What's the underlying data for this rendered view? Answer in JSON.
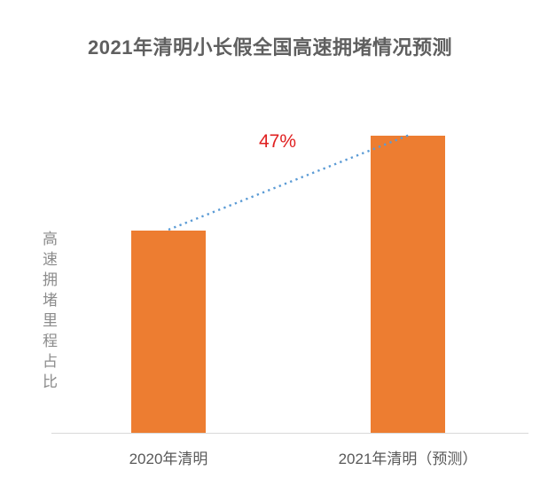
{
  "chart_data": {
    "type": "bar",
    "title": "2021年清明小长假全国高速拥堵情况预测",
    "ylabel": "高速拥堵里程占比",
    "xlabel": "",
    "categories": [
      "2020年清明",
      "2021年清明（预测）"
    ],
    "series": [
      {
        "name": "高速拥堵里程占比",
        "values": [
          100,
          147
        ]
      }
    ],
    "value_scale": "relative index (2020 = 100); no numeric y-axis ticks shown",
    "annotation": {
      "text": "47%",
      "color": "#e02020"
    },
    "grid": false,
    "legend": false,
    "colors": {
      "bar": "#ed7d31",
      "trend_line": "#5b9bd5",
      "axis_line": "#d9d9d9",
      "title_text": "#5f5f5f",
      "category_text": "#595959",
      "ylabel_text": "#8c8c8c"
    }
  }
}
